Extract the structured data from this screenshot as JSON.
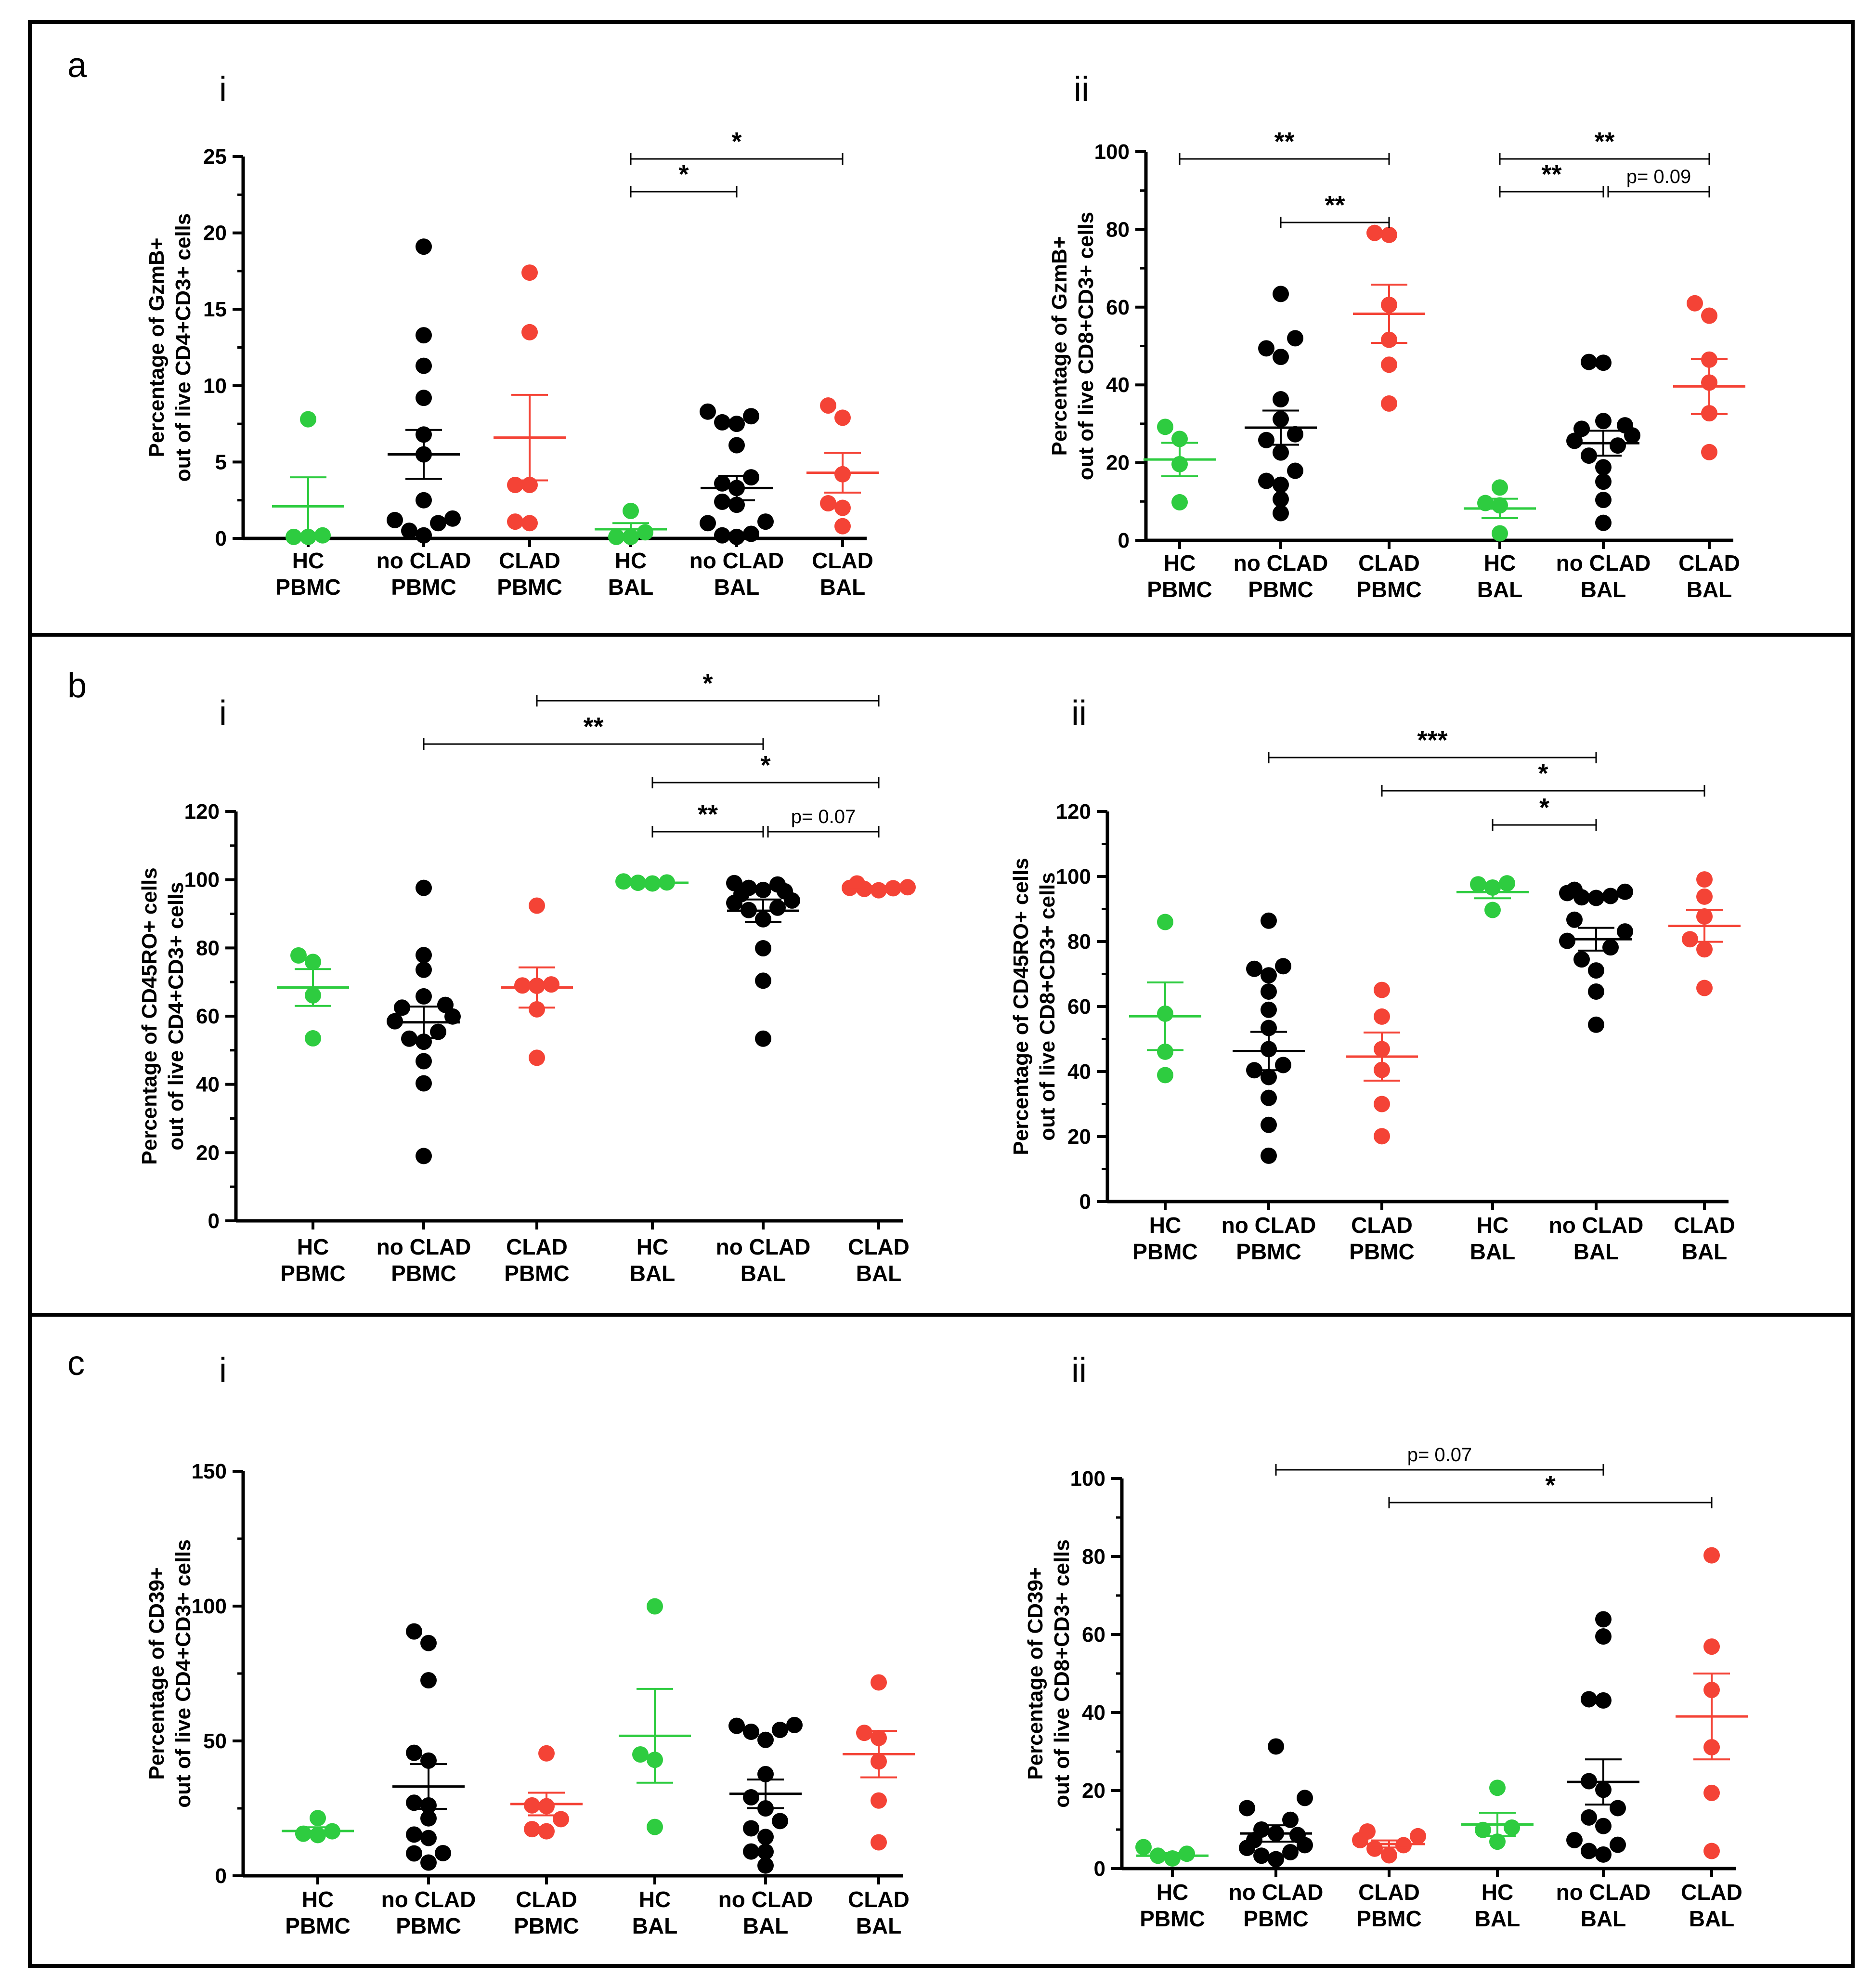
{
  "colors": {
    "HC": "#2ecc40",
    "noCLAD": "#000000",
    "CLAD": "#f44336",
    "HC_line": "#2ecc40",
    "noCLAD_line": "#000000",
    "CLAD_line": "#f44336"
  },
  "chart_data": [
    {
      "id": "a-i",
      "section": "a",
      "panel": "i",
      "type": "scatter",
      "ylabel": [
        "Percentage of GzmB+",
        "out of live CD4+CD3+ cells"
      ],
      "ylim": [
        0,
        25
      ],
      "yticks": [
        0,
        5,
        10,
        15,
        20,
        25
      ],
      "categories": [
        [
          "HC",
          "PBMC"
        ],
        [
          "no CLAD",
          "PBMC"
        ],
        [
          "CLAD",
          "PBMC"
        ],
        [
          "HC",
          "BAL"
        ],
        [
          "no CLAD",
          "BAL"
        ],
        [
          "CLAD",
          "BAL"
        ]
      ],
      "groups": [
        {
          "group": "HC",
          "points": [
            0.1,
            0.1,
            0.2,
            7.8
          ],
          "mean": 2.1,
          "sem": 1.9
        },
        {
          "group": "noCLAD",
          "points": [
            0.2,
            0.5,
            1.0,
            1.2,
            1.3,
            2.5,
            5.5,
            6.8,
            9.2,
            11.3,
            13.3,
            19.1
          ],
          "mean": 5.5,
          "sem": 1.6
        },
        {
          "group": "CLAD",
          "points": [
            1.0,
            1.1,
            3.5,
            3.5,
            13.5,
            17.4
          ],
          "mean": 6.6,
          "sem": 2.8
        },
        {
          "group": "HC",
          "points": [
            0.1,
            0.1,
            0.4,
            1.8
          ],
          "mean": 0.6,
          "sem": 0.4
        },
        {
          "group": "noCLAD",
          "points": [
            0.1,
            0.2,
            0.3,
            1.0,
            1.1,
            2.2,
            2.4,
            3.3,
            3.6,
            4.0,
            6.1,
            7.5,
            7.6,
            8.0,
            8.3
          ],
          "mean": 3.3,
          "sem": 0.8
        },
        {
          "group": "CLAD",
          "points": [
            0.8,
            2.0,
            2.3,
            4.2,
            7.9,
            8.7
          ],
          "mean": 4.3,
          "sem": 1.3
        }
      ],
      "annotations": [
        {
          "from": 3,
          "to": 4,
          "level": 24.9,
          "text": "*"
        },
        {
          "from": 3,
          "to": 5,
          "level": 24.9,
          "text": "*",
          "top": true
        }
      ]
    },
    {
      "id": "a-ii",
      "section": "",
      "panel": "ii",
      "type": "scatter",
      "ylabel": [
        "Percentage of GzmB+",
        "out of live CD8+CD3+ cells"
      ],
      "ylim": [
        0,
        100
      ],
      "yticks": [
        0,
        20,
        40,
        60,
        80,
        100
      ],
      "categories": [
        [
          "HC",
          "PBMC"
        ],
        [
          "no CLAD",
          "PBMC"
        ],
        [
          "CLAD",
          "PBMC"
        ],
        [
          "HC",
          "BAL"
        ],
        [
          "no CLAD",
          "BAL"
        ],
        [
          "CLAD",
          "BAL"
        ]
      ],
      "groups": [
        {
          "group": "HC",
          "points": [
            9.8,
            19.6,
            26.1,
            29.2
          ],
          "mean": 20.8,
          "sem": 4.3
        },
        {
          "group": "noCLAD",
          "points": [
            7.0,
            10.6,
            14.3,
            15.3,
            17.9,
            22.6,
            25.8,
            27.3,
            31.2,
            36.3,
            47.2,
            49.4,
            52.0,
            63.4
          ],
          "mean": 29.0,
          "sem": 4.4
        },
        {
          "group": "CLAD",
          "points": [
            35.2,
            45.2,
            51.6,
            60.6,
            78.6,
            79.1
          ],
          "mean": 58.3,
          "sem": 7.5
        },
        {
          "group": "HC",
          "points": [
            1.8,
            9.0,
            9.6,
            13.6
          ],
          "mean": 8.2,
          "sem": 2.5
        },
        {
          "group": "noCLAD",
          "points": [
            4.5,
            10.4,
            15.1,
            18.8,
            21.8,
            24.4,
            25.6,
            27.0,
            28.7,
            29.6,
            30.7,
            45.7,
            45.9
          ],
          "mean": 25.0,
          "sem": 3.2
        },
        {
          "group": "CLAD",
          "points": [
            22.7,
            32.7,
            40.6,
            46.5,
            57.8,
            61.0
          ],
          "mean": 39.6,
          "sem": 7.1
        }
      ],
      "annotations": [
        {
          "from": 0,
          "to": 2,
          "text": "**",
          "row": 0
        },
        {
          "from": 1,
          "to": 2,
          "text": "**",
          "row": 2
        },
        {
          "from": 3,
          "to": 5,
          "text": "**",
          "row": 0
        },
        {
          "from": 3,
          "to": 4,
          "text": "**",
          "row": 1
        },
        {
          "from": 4,
          "to": 5,
          "text": "p= 0.09",
          "row": 1,
          "small": true
        }
      ]
    },
    {
      "id": "b-i",
      "section": "b",
      "panel": "i",
      "type": "scatter",
      "ylabel": [
        "Percentage of CD45RO+ cells",
        "out of live CD4+CD3+ cells"
      ],
      "ylim": [
        0,
        120
      ],
      "yticks": [
        0,
        20,
        40,
        60,
        80,
        100,
        120
      ],
      "categories": [
        [
          "HC",
          "PBMC"
        ],
        [
          "no CLAD",
          "PBMC"
        ],
        [
          "CLAD",
          "PBMC"
        ],
        [
          "HC",
          "BAL"
        ],
        [
          "no CLAD",
          "BAL"
        ],
        [
          "CLAD",
          "BAL"
        ]
      ],
      "groups": [
        {
          "group": "HC",
          "points": [
            53.5,
            66.1,
            75.9,
            77.8
          ],
          "mean": 68.4,
          "sem": 5.4
        },
        {
          "group": "noCLAD",
          "points": [
            19.0,
            40.3,
            46.8,
            52.5,
            53.4,
            55.4,
            58.5,
            59.9,
            62.5,
            63.3,
            65.8,
            73.6,
            77.9,
            97.6
          ],
          "mean": 58.2,
          "sem": 4.6
        },
        {
          "group": "CLAD",
          "points": [
            47.8,
            62.0,
            68.9,
            69.0,
            69.3,
            92.4
          ],
          "mean": 68.4,
          "sem": 5.9
        },
        {
          "group": "HC",
          "points": [
            98.9,
            99.1,
            99.2,
            99.5
          ],
          "mean": 99.1,
          "sem": 0.1
        },
        {
          "group": "noCLAD",
          "points": [
            53.4,
            70.4,
            79.9,
            88.4,
            91.1,
            91.8,
            93.2,
            93.9,
            95.8,
            96.6,
            97.0,
            97.6,
            98.6,
            99.0
          ],
          "mean": 90.9,
          "sem": 3.3
        },
        {
          "group": "CLAD",
          "points": [
            96.9,
            97.3,
            97.5,
            97.6,
            97.8,
            98.9
          ],
          "mean": 97.8,
          "sem": 0.3
        }
      ],
      "annotations": [
        {
          "from": 2,
          "to": 5,
          "text": "*",
          "row": 0
        },
        {
          "from": 1,
          "to": 4,
          "text": "**",
          "row": 1
        },
        {
          "from": 3,
          "to": 5,
          "text": "*",
          "row": 2
        },
        {
          "from": 3,
          "to": 4,
          "text": "**",
          "row": 3
        },
        {
          "from": 4,
          "to": 5,
          "text": "p= 0.07",
          "row": 3,
          "small": true
        }
      ]
    },
    {
      "id": "b-ii",
      "section": "",
      "panel": "ii",
      "type": "scatter",
      "ylabel": [
        "Percentage of CD45RO+ cells",
        "out of live CD8+CD3+ cells"
      ],
      "ylim": [
        0,
        120
      ],
      "yticks": [
        0,
        20,
        40,
        60,
        80,
        100,
        120
      ],
      "categories": [
        [
          "HC",
          "PBMC"
        ],
        [
          "no CLAD",
          "PBMC"
        ],
        [
          "CLAD",
          "PBMC"
        ],
        [
          "HC",
          "BAL"
        ],
        [
          "no CLAD",
          "BAL"
        ],
        [
          "CLAD",
          "BAL"
        ]
      ],
      "groups": [
        {
          "group": "HC",
          "points": [
            38.9,
            46.1,
            57.8,
            86.0
          ],
          "mean": 57.0,
          "sem": 10.4
        },
        {
          "group": "noCLAD",
          "points": [
            14.1,
            23.6,
            31.9,
            38.3,
            40.4,
            42.0,
            46.9,
            53.4,
            59.0,
            64.6,
            69.6,
            71.6,
            72.4,
            86.4
          ],
          "mean": 46.3,
          "sem": 5.9
        },
        {
          "group": "CLAD",
          "points": [
            20.1,
            30.0,
            40.5,
            46.9,
            56.9,
            65.1
          ],
          "mean": 44.6,
          "sem": 7.4
        },
        {
          "group": "HC",
          "points": [
            89.7,
            96.6,
            97.6,
            97.9
          ],
          "mean": 95.2,
          "sem": 1.9
        },
        {
          "group": "noCLAD",
          "points": [
            54.4,
            64.6,
            71.1,
            74.5,
            78.2,
            80.2,
            83.1,
            86.7,
            93.4,
            93.6,
            94.0,
            94.9,
            95.3,
            95.9
          ],
          "mean": 80.7,
          "sem": 3.5
        },
        {
          "group": "CLAD",
          "points": [
            65.7,
            77.6,
            80.7,
            87.7,
            93.8,
            99.1
          ],
          "mean": 84.8,
          "sem": 4.9
        }
      ],
      "annotations": [
        {
          "from": 1,
          "to": 4,
          "text": "***",
          "row": 0
        },
        {
          "from": 2,
          "to": 5,
          "text": "*",
          "row": 1
        },
        {
          "from": 3,
          "to": 4,
          "text": "*",
          "row": 2
        }
      ]
    },
    {
      "id": "c-i",
      "section": "c",
      "panel": "i",
      "type": "scatter",
      "ylabel": [
        "Percentage of CD39+",
        "out of live CD4+CD3+ cells"
      ],
      "ylim": [
        0,
        150
      ],
      "yticks": [
        0,
        50,
        100,
        150
      ],
      "categories": [
        [
          "HC",
          "PBMC"
        ],
        [
          "no CLAD",
          "PBMC"
        ],
        [
          "CLAD",
          "PBMC"
        ],
        [
          "HC",
          "BAL"
        ],
        [
          "no CLAD",
          "BAL"
        ],
        [
          "CLAD",
          "BAL"
        ]
      ],
      "groups": [
        {
          "group": "HC",
          "points": [
            15.1,
            15.6,
            16.5,
            21.4
          ],
          "mean": 16.6,
          "sem": 1.4
        },
        {
          "group": "noCLAD",
          "points": [
            4.9,
            8.3,
            8.4,
            15.3,
            21.3,
            26.1,
            27.1,
            42.7,
            45.6,
            72.5,
            86.3,
            90.6,
            14.0
          ],
          "mean": 33.1,
          "sem": 8.3
        },
        {
          "group": "CLAD",
          "points": [
            16.5,
            17.3,
            21.0,
            25.8,
            26.1,
            45.4
          ],
          "mean": 26.6,
          "sem": 4.2
        },
        {
          "group": "HC",
          "points": [
            18.1,
            43.0,
            45.0,
            99.9
          ],
          "mean": 51.9,
          "sem": 17.4
        },
        {
          "group": "noCLAD",
          "points": [
            3.8,
            8.9,
            9.0,
            14.4,
            17.6,
            20.3,
            25.0,
            29.1,
            37.7,
            50.4,
            53.4,
            54.1,
            55.6,
            55.9
          ],
          "mean": 30.4,
          "sem": 5.3
        },
        {
          "group": "CLAD",
          "points": [
            12.4,
            27.9,
            42.4,
            51.1,
            53.0,
            71.7
          ],
          "mean": 45.1,
          "sem": 8.6
        }
      ],
      "annotations": []
    },
    {
      "id": "c-ii",
      "section": "",
      "panel": "ii",
      "type": "scatter",
      "ylabel": [
        "Percentage of CD39+",
        "out of live CD8+CD3+ cells"
      ],
      "ylim": [
        0,
        100
      ],
      "yticks": [
        0,
        20,
        40,
        60,
        80,
        100
      ],
      "categories": [
        [
          "HC",
          "PBMC"
        ],
        [
          "no CLAD",
          "PBMC"
        ],
        [
          "CLAD",
          "PBMC"
        ],
        [
          "HC",
          "BAL"
        ],
        [
          "no CLAD",
          "BAL"
        ],
        [
          "CLAD",
          "BAL"
        ]
      ],
      "groups": [
        {
          "group": "HC",
          "points": [
            2.6,
            3.3,
            3.8,
            5.5
          ],
          "mean": 3.3,
          "sem": 0.7
        },
        {
          "group": "noCLAD",
          "points": [
            2.4,
            3.3,
            4.2,
            5.3,
            6.0,
            7.3,
            8.6,
            9.0,
            10.0,
            12.5,
            15.5,
            18.1,
            31.3
          ],
          "mean": 9.0,
          "sem": 2.1
        },
        {
          "group": "CLAD",
          "points": [
            3.4,
            5.1,
            6.0,
            7.3,
            8.3,
            9.5
          ],
          "mean": 6.3,
          "sem": 0.9
        },
        {
          "group": "HC",
          "points": [
            6.9,
            9.9,
            10.5,
            20.7
          ],
          "mean": 11.3,
          "sem": 3.0
        },
        {
          "group": "noCLAD",
          "points": [
            3.6,
            4.5,
            6.1,
            7.3,
            10.9,
            13.1,
            15.5,
            20.2,
            22.4,
            43.1,
            43.4,
            59.5,
            63.9
          ],
          "mean": 22.2,
          "sem": 5.8
        },
        {
          "group": "CLAD",
          "points": [
            4.5,
            19.4,
            31.1,
            45.8,
            56.9,
            80.3
          ],
          "mean": 39.0,
          "sem": 11.0
        }
      ],
      "annotations": [
        {
          "from": 1,
          "to": 4,
          "text": "p= 0.07",
          "row": 0,
          "small": true
        },
        {
          "from": 2,
          "to": 5,
          "text": "*",
          "row": 1
        }
      ]
    }
  ]
}
